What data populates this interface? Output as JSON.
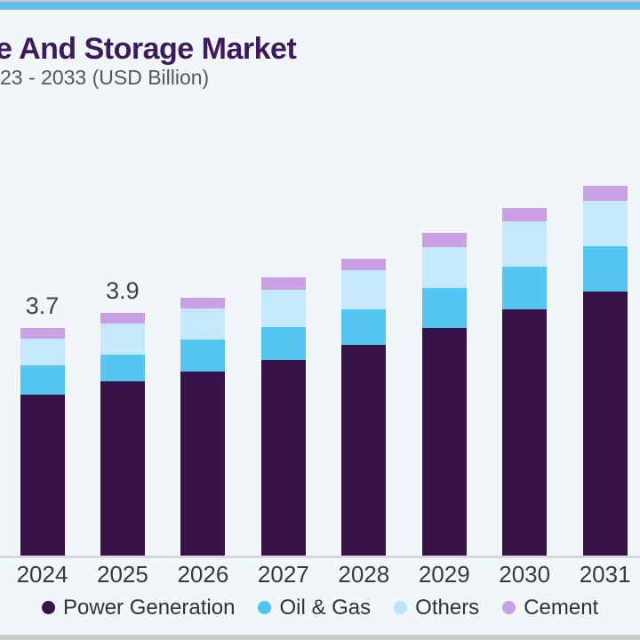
{
  "window": {
    "background_color": "#f1f6f9",
    "top_edge_color": "#c7c9cb",
    "top_stripe_color": "#62bee9",
    "bottom_band_color": "#c9cacc"
  },
  "header": {
    "title": "e And Storage Market",
    "subtitle": "23 - 2033 (USD Billion)",
    "title_color": "#3d195d",
    "subtitle_color": "#54585d"
  },
  "chart_data": {
    "type": "bar",
    "stacked": true,
    "title": "e And Storage Market",
    "subtitle": "23 - 2033 (USD Billion)",
    "unit": "USD Billion",
    "categories": [
      "2024",
      "2025",
      "2026",
      "2027",
      "2028",
      "2029",
      "2030",
      "2031"
    ],
    "series": [
      {
        "name": "Power Generation",
        "color": "#38134a",
        "values": [
          2.6,
          2.81,
          2.97,
          3.16,
          3.4,
          3.67,
          3.97,
          4.26
        ]
      },
      {
        "name": "Oil & Gas",
        "color": "#53c6f1",
        "values": [
          0.47,
          0.44,
          0.51,
          0.53,
          0.57,
          0.64,
          0.69,
          0.73
        ]
      },
      {
        "name": "Others",
        "color": "#c5e9fa",
        "values": [
          0.43,
          0.5,
          0.51,
          0.6,
          0.63,
          0.66,
          0.73,
          0.73
        ]
      },
      {
        "name": "Cement",
        "color": "#cb9fe3",
        "values": [
          0.17,
          0.16,
          0.17,
          0.19,
          0.19,
          0.23,
          0.21,
          0.24
        ]
      }
    ],
    "totals_estimated": [
      3.7,
      3.9,
      4.2,
      4.5,
      4.8,
      5.2,
      5.6,
      6.0
    ],
    "bar_total_labels": [
      "3.7",
      "3.9",
      "",
      "",
      "",
      "",
      "",
      ""
    ],
    "ylim": [
      0,
      6.5
    ],
    "gridlines": false,
    "axis": {
      "label_color": "#37393e",
      "line_color": "#d5d7da"
    },
    "legend": {
      "position": "bottom",
      "items": [
        {
          "label": "Power Generation",
          "color": "#38134a"
        },
        {
          "label": "Oil & Gas",
          "color": "#4dc3f0"
        },
        {
          "label": "Others",
          "color": "#b9e5f8"
        },
        {
          "label": "Cement",
          "color": "#c9a0e4"
        }
      ]
    }
  }
}
